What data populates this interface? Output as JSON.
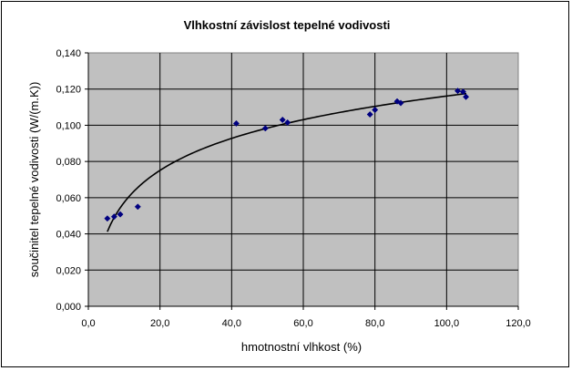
{
  "chart_data": {
    "type": "scatter",
    "title": "Vlhkostní závislost tepelné vodivosti",
    "xlabel": "hmotnostní vlhkost (%)",
    "ylabel": "součinitel tepelné vodivosti (W/(m.K))",
    "xlim": [
      0,
      120
    ],
    "ylim": [
      0,
      0.14
    ],
    "x_ticks": [
      "0,0",
      "20,0",
      "40,0",
      "60,0",
      "80,0",
      "100,0",
      "120,0"
    ],
    "y_ticks": [
      "0,000",
      "0,020",
      "0,040",
      "0,060",
      "0,080",
      "0,100",
      "0,120",
      "0,140"
    ],
    "grid": true,
    "legend": "none",
    "plot_background": "#c0c0c0",
    "marker_color": "#000080",
    "trendline": {
      "type": "logarithmic",
      "x_range": [
        5.3,
        105.5
      ],
      "color": "#000000"
    },
    "series": [
      {
        "points": [
          {
            "x": 5.3,
            "y": 0.0485
          },
          {
            "x": 7.2,
            "y": 0.0495
          },
          {
            "x": 8.9,
            "y": 0.0508
          },
          {
            "x": 13.8,
            "y": 0.055
          },
          {
            "x": 41.3,
            "y": 0.101
          },
          {
            "x": 49.4,
            "y": 0.0983
          },
          {
            "x": 54.2,
            "y": 0.103
          },
          {
            "x": 55.6,
            "y": 0.1015
          },
          {
            "x": 78.6,
            "y": 0.106
          },
          {
            "x": 80.0,
            "y": 0.1085
          },
          {
            "x": 86.2,
            "y": 0.1132
          },
          {
            "x": 87.2,
            "y": 0.1123
          },
          {
            "x": 103.1,
            "y": 0.119
          },
          {
            "x": 104.6,
            "y": 0.1185
          },
          {
            "x": 105.4,
            "y": 0.1157
          }
        ]
      }
    ]
  }
}
